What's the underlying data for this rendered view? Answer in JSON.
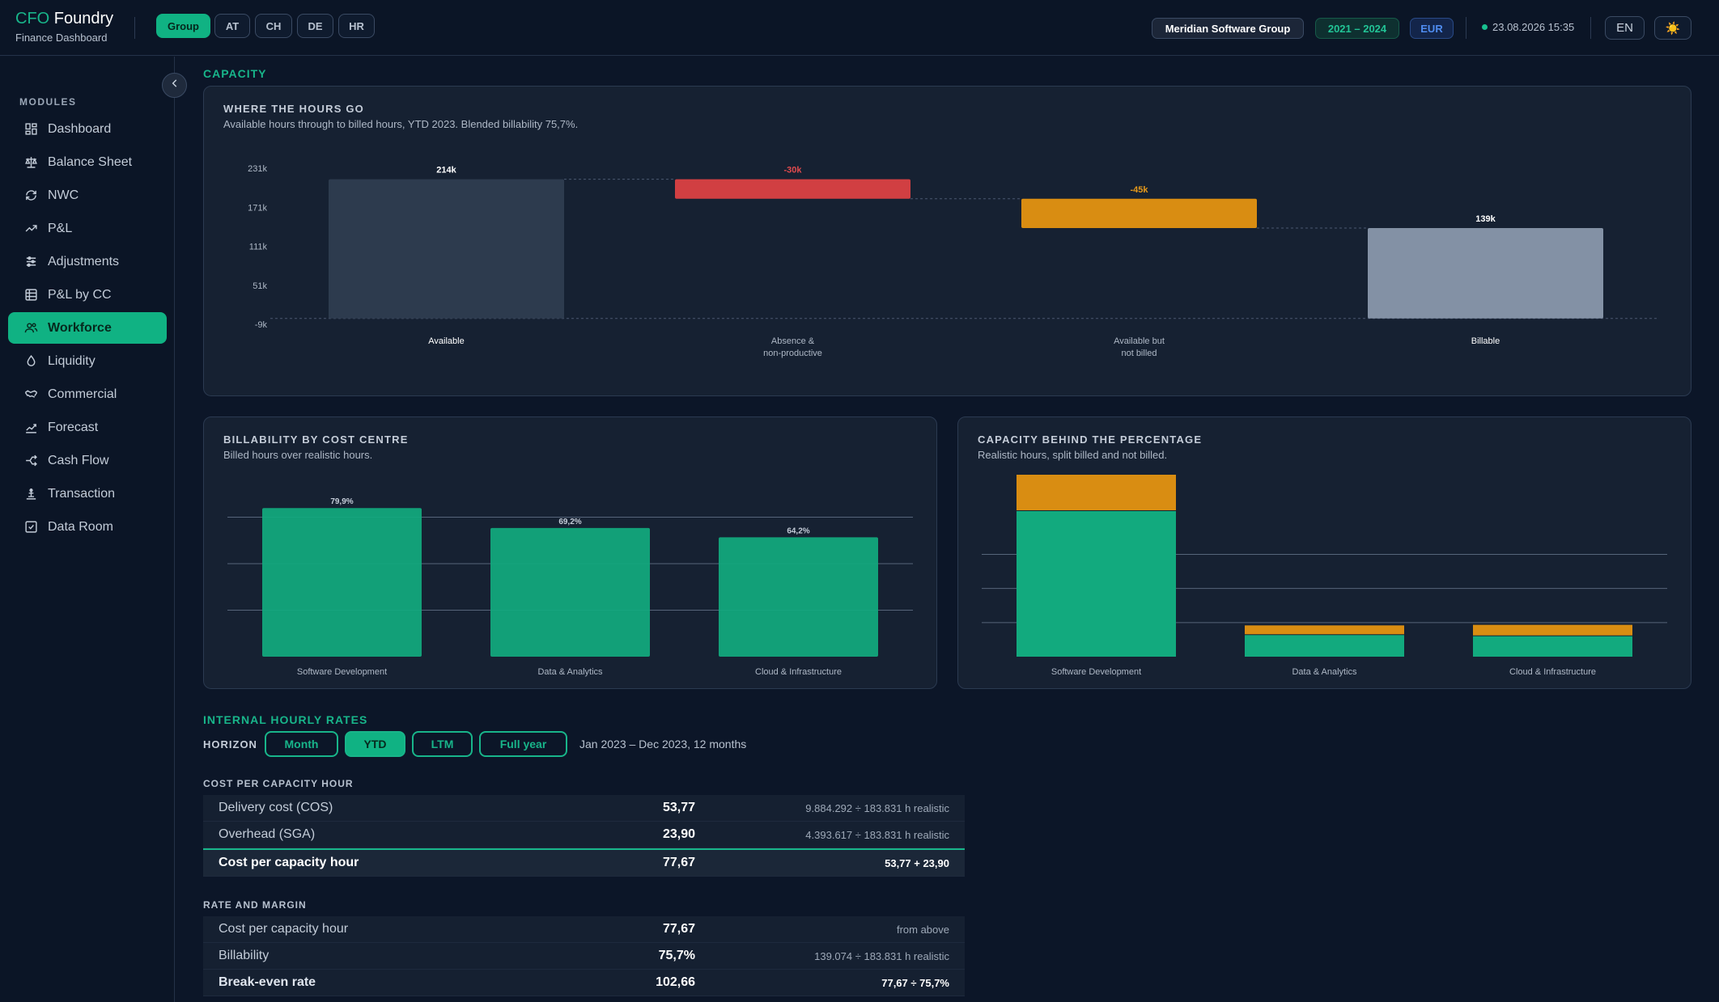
{
  "brand": {
    "prefix": "CFO",
    "name": "Foundry",
    "subtitle": "Finance Dashboard"
  },
  "entities": [
    {
      "label": "Group",
      "active": true
    },
    {
      "label": "AT",
      "active": false
    },
    {
      "label": "CH",
      "active": false
    },
    {
      "label": "DE",
      "active": false
    },
    {
      "label": "HR",
      "active": false
    }
  ],
  "header": {
    "company": "Meridian Software Group",
    "period": "2021 – 2024",
    "currency": "EUR",
    "timestamp": "23.08.2026 15:35",
    "language": "EN",
    "theme_icon": "☀️"
  },
  "sidebar": {
    "modules_label": "MODULES",
    "items": [
      {
        "label": "Dashboard",
        "icon": "dashboard-icon",
        "active": false
      },
      {
        "label": "Balance Sheet",
        "icon": "scale-icon",
        "active": false
      },
      {
        "label": "NWC",
        "icon": "refresh-icon",
        "active": false
      },
      {
        "label": "P&L",
        "icon": "trend-up-icon",
        "active": false
      },
      {
        "label": "Adjustments",
        "icon": "sliders-icon",
        "active": false
      },
      {
        "label": "P&L by CC",
        "icon": "table-icon",
        "active": false
      },
      {
        "label": "Workforce",
        "icon": "users-icon",
        "active": true
      },
      {
        "label": "Liquidity",
        "icon": "droplet-icon",
        "active": false
      },
      {
        "label": "Commercial",
        "icon": "handshake-icon",
        "active": false
      },
      {
        "label": "Forecast",
        "icon": "forecast-icon",
        "active": false
      },
      {
        "label": "Cash Flow",
        "icon": "split-icon",
        "active": false
      },
      {
        "label": "Transaction",
        "icon": "transaction-icon",
        "active": false
      },
      {
        "label": "Data Room",
        "icon": "checkbox-icon",
        "active": false
      }
    ]
  },
  "capacity": {
    "section_title": "CAPACITY",
    "waterfall": {
      "title": "WHERE THE HOURS GO",
      "subtitle": "Available hours through to billed hours, YTD 2023. Blended billability 75,7%."
    },
    "billability": {
      "title": "BILLABILITY BY COST CENTRE",
      "subtitle": "Billed hours over realistic hours."
    },
    "split": {
      "title": "CAPACITY BEHIND THE PERCENTAGE",
      "subtitle": "Realistic hours, split billed and not billed."
    }
  },
  "rates": {
    "section_title": "INTERNAL HOURLY RATES",
    "horizon_label": "HORIZON",
    "horizons": [
      {
        "label": "Month",
        "active": false
      },
      {
        "label": "YTD",
        "active": true
      },
      {
        "label": "LTM",
        "active": false
      },
      {
        "label": "Full year",
        "active": false
      }
    ],
    "range_text": "Jan 2023 – Dec 2023, 12 months",
    "cost_heading": "COST PER CAPACITY HOUR",
    "cost_rows": [
      {
        "label": "Delivery cost (COS)",
        "value": "53,77",
        "note": "9.884.292 ÷ 183.831 h realistic"
      },
      {
        "label": "Overhead (SGA)",
        "value": "23,90",
        "note": "4.393.617 ÷ 183.831 h realistic"
      },
      {
        "label": "Cost per capacity hour",
        "value": "77,67",
        "note": "53,77 + 23,90"
      }
    ],
    "margin_heading": "RATE AND MARGIN",
    "margin_rows": [
      {
        "label": "Cost per capacity hour",
        "value": "77,67",
        "note": "from above"
      },
      {
        "label": "Billability",
        "value": "75,7%",
        "note": "139.074 ÷ 183.831 h realistic"
      },
      {
        "label": "Break-even rate",
        "value": "102,66",
        "note": "77,67 ÷ 75,7%"
      }
    ]
  },
  "colors": {
    "accent": "#10b283",
    "available": "#2d3b4e",
    "absence": "#d13f42",
    "not_billed": "#d98d12",
    "billable": "#8391a5",
    "billed": "#12aa7e"
  },
  "chart_data": [
    {
      "type": "bar",
      "subtype": "waterfall",
      "categories": [
        "Available",
        "Absence & non-productive",
        "Available but not billed",
        "Billable"
      ],
      "values": [
        214000,
        -30000,
        -45000,
        139000
      ],
      "value_labels": [
        "214k",
        "-30k",
        "-45k",
        "139k"
      ],
      "yticks": [
        "231k",
        "171k",
        "111k",
        "51k",
        "-9k"
      ],
      "ylim": [
        -9000,
        231000
      ],
      "grid": false
    },
    {
      "type": "bar",
      "categories": [
        "Software Development",
        "Data & Analytics",
        "Cloud & Infrastructure"
      ],
      "values": [
        79.9,
        69.2,
        64.2
      ],
      "value_labels": [
        "79,9%",
        "69,2%",
        "64,2%"
      ],
      "ylim": [
        0,
        100
      ],
      "grid": true
    },
    {
      "type": "bar",
      "stacked": true,
      "categories": [
        "Software Development",
        "Data & Analytics",
        "Cloud & Infrastructure"
      ],
      "series": [
        {
          "values": [
            128,
            19,
            18
          ],
          "color": "#12aa7e"
        },
        {
          "values": [
            32,
            8.5,
            10
          ],
          "color": "#d98d12"
        }
      ],
      "ylim": [
        0,
        160
      ],
      "grid": true
    }
  ]
}
